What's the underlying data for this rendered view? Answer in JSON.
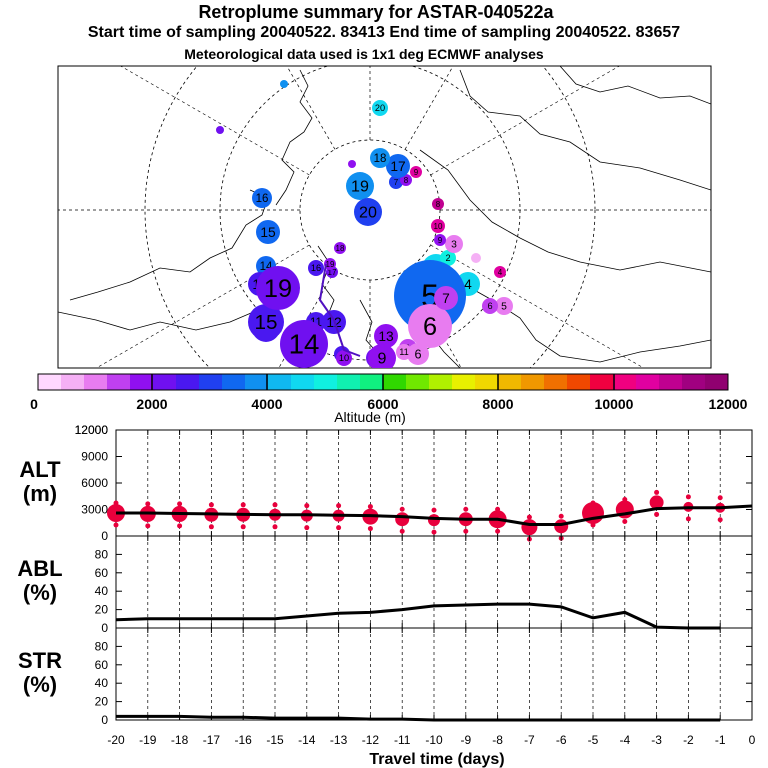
{
  "title": "Retroplume summary for ASTAR-040522a",
  "subtitle": "Start time of sampling 20040522. 83413     End time of sampling 20040522. 83657",
  "met_line": "Meteorological data used is 1x1 deg ECMWF analyses",
  "colors": {
    "pink": "#e8003c",
    "altitude_scale": [
      "#ffd8ff",
      "#f5b0f5",
      "#e87cf0",
      "#c040f0",
      "#9010f0",
      "#7010f0",
      "#4a18f0",
      "#2040f0",
      "#1068f0",
      "#1090f0",
      "#10b8f0",
      "#10d8f0",
      "#10f0e0",
      "#10f0b0",
      "#10f080",
      "#30d800",
      "#70e800",
      "#b0f000",
      "#e8f000",
      "#f0d800",
      "#f0b800",
      "#f09800",
      "#f07000",
      "#f04800",
      "#f00040",
      "#f00080",
      "#e000a0",
      "#c00090",
      "#a00080",
      "#900070"
    ]
  },
  "colorbar": {
    "label": "Altitude (m)",
    "tick_labels": [
      "0",
      "2000",
      "4000",
      "6000",
      "8000",
      "10000",
      "12000"
    ]
  },
  "map_points": [
    {
      "day": "1",
      "label_pos": "sw"
    },
    {
      "day": "2",
      "label_pos": "s"
    },
    {
      "day": "3",
      "label_pos": "e"
    },
    {
      "day": "4",
      "label_pos": "e"
    },
    {
      "day": "5",
      "label_pos": "e"
    },
    {
      "day": "6",
      "label_pos": "e"
    },
    {
      "day": "7",
      "label_pos": "e"
    },
    {
      "day": "8",
      "label_pos": "e"
    },
    {
      "day": "9",
      "label_pos": "e"
    },
    {
      "day": "10",
      "label_pos": "w"
    },
    {
      "day": "11",
      "label_pos": "w"
    },
    {
      "day": "12",
      "label_pos": "w"
    },
    {
      "day": "13",
      "label_pos": "w"
    },
    {
      "day": "14",
      "label_pos": "w"
    },
    {
      "day": "15",
      "label_pos": "w"
    },
    {
      "day": "16",
      "label_pos": "w"
    },
    {
      "day": "17",
      "label_pos": "w"
    },
    {
      "day": "18",
      "label_pos": "n"
    },
    {
      "day": "19",
      "label_pos": "n"
    },
    {
      "day": "20",
      "label_pos": "n"
    }
  ],
  "chart_data": [
    {
      "type": "scatter",
      "panel": "ALT",
      "ylabel": "ALT\n(m)",
      "ylabel_lines": [
        "ALT",
        "(m)"
      ],
      "ylim": [
        0,
        12000
      ],
      "yticks": [
        "0",
        "3000",
        "6000",
        "9000",
        "12000"
      ],
      "x": [
        -20,
        -19,
        -18,
        -17,
        -16,
        -15,
        -14,
        -13,
        -12,
        -11,
        -10,
        -9,
        -8,
        -7,
        -6,
        -5,
        -4,
        -3,
        -2,
        -1,
        0
      ],
      "line_values": [
        2600,
        2600,
        2550,
        2500,
        2450,
        2400,
        2400,
        2350,
        2300,
        2200,
        2000,
        1900,
        1900,
        1300,
        1300,
        2000,
        2500,
        3100,
        3200,
        3200,
        3400
      ],
      "bubbles": [
        {
          "x": -20,
          "y": 2600,
          "size": 9
        },
        {
          "x": -19,
          "y": 2500,
          "size": 8
        },
        {
          "x": -18,
          "y": 2500,
          "size": 8
        },
        {
          "x": -17,
          "y": 2400,
          "size": 7
        },
        {
          "x": -16,
          "y": 2400,
          "size": 7
        },
        {
          "x": -15,
          "y": 2400,
          "size": 6
        },
        {
          "x": -14,
          "y": 2300,
          "size": 6
        },
        {
          "x": -13,
          "y": 2300,
          "size": 6
        },
        {
          "x": -12,
          "y": 2200,
          "size": 8
        },
        {
          "x": -11,
          "y": 1900,
          "size": 7
        },
        {
          "x": -10,
          "y": 1800,
          "size": 6
        },
        {
          "x": -9,
          "y": 1900,
          "size": 7
        },
        {
          "x": -8,
          "y": 1900,
          "size": 9
        },
        {
          "x": -7,
          "y": 1000,
          "size": 8
        },
        {
          "x": -6,
          "y": 1100,
          "size": 7
        },
        {
          "x": -5,
          "y": 2600,
          "size": 11
        },
        {
          "x": -4,
          "y": 3000,
          "size": 9
        },
        {
          "x": -3,
          "y": 3800,
          "size": 7
        },
        {
          "x": -2,
          "y": 3300,
          "size": 5
        },
        {
          "x": -1,
          "y": 3200,
          "size": 5
        }
      ]
    },
    {
      "type": "line",
      "panel": "ABL",
      "ylabel_lines": [
        "ABL",
        "(%)"
      ],
      "ylim": [
        0,
        100
      ],
      "yticks": [
        "0",
        "20",
        "40",
        "60",
        "80"
      ],
      "x": [
        -20,
        -19,
        -18,
        -17,
        -16,
        -15,
        -14,
        -13,
        -12,
        -11,
        -10,
        -9,
        -8,
        -7,
        -6,
        -5,
        -4,
        -3,
        -2,
        -1
      ],
      "values": [
        9,
        10,
        10,
        10,
        10,
        10,
        13,
        16,
        17,
        20,
        24,
        25,
        26,
        26,
        23,
        11,
        17,
        1,
        0,
        0
      ]
    },
    {
      "type": "line",
      "panel": "STR",
      "ylabel_lines": [
        "STR",
        "(%)"
      ],
      "ylim": [
        0,
        100
      ],
      "yticks": [
        "0",
        "20",
        "40",
        "60",
        "80"
      ],
      "x": [
        -20,
        -19,
        -18,
        -17,
        -16,
        -15,
        -14,
        -13,
        -12,
        -11,
        -10,
        -9,
        -8,
        -7,
        -6,
        -5,
        -4,
        -3,
        -2,
        -1
      ],
      "values": [
        4,
        4,
        4,
        3,
        3,
        2,
        2,
        2,
        1,
        1,
        0,
        0,
        0,
        0,
        0,
        0,
        0,
        0,
        0,
        0
      ]
    }
  ],
  "x_axis": {
    "label": "Travel time (days)",
    "tick_labels": [
      "-20",
      "-19",
      "-18",
      "-17",
      "-16",
      "-15",
      "-14",
      "-13",
      "-12",
      "-11",
      "-10",
      "-9",
      "-8",
      "-7",
      "-6",
      "-5",
      "-4",
      "-3",
      "-2",
      "-1",
      "0"
    ]
  }
}
